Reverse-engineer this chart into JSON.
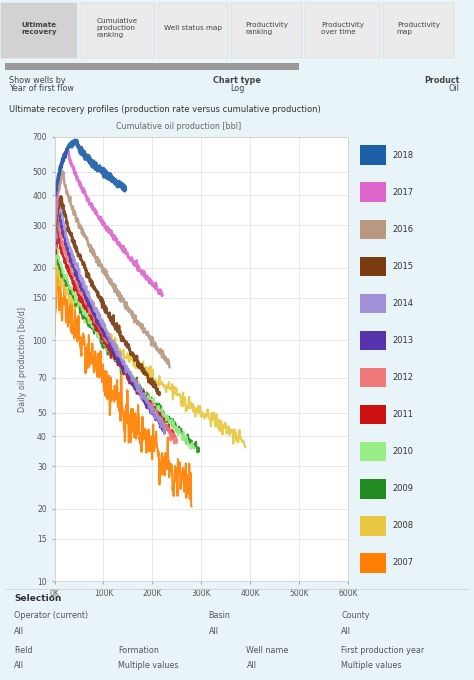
{
  "title_main": "Ultimate recovery profiles (production rate versus cumulative production)",
  "xlabel": "Cumulative oil production [bbl]",
  "ylabel": "Daily oil production [bo/d]",
  "background_color": "#e8f4f8",
  "plot_bg_color": "#ffffff",
  "tab_labels": [
    "Ultimate\nrecovery",
    "Cumulative\nproduction\nranking",
    "Well status map",
    "Productivity\nranking",
    "Productivity\nover time",
    "Productivity\nmap"
  ],
  "show_wells_by": "Year of first flow",
  "chart_type": "Log",
  "product": "Oil",
  "years": [
    "2018",
    "2017",
    "2016",
    "2015",
    "2014",
    "2013",
    "2012",
    "2011",
    "2010",
    "2009",
    "2008",
    "2007"
  ],
  "colors": {
    "2018": "#1a5fa8",
    "2017": "#dd66cc",
    "2016": "#b89880",
    "2015": "#7a3b10",
    "2014": "#a090d8",
    "2013": "#5533aa",
    "2012": "#f07878",
    "2011": "#cc1111",
    "2010": "#99ee88",
    "2009": "#228B22",
    "2008": "#e8c840",
    "2007": "#ff8000"
  },
  "xlim": [
    0,
    600000
  ],
  "ylim_log_min": 10,
  "ylim_log_max": 700,
  "yticks": [
    10,
    15,
    20,
    30,
    40,
    50,
    70,
    100,
    150,
    200,
    300,
    400,
    500,
    700
  ],
  "xticks": [
    0,
    100000,
    200000,
    300000,
    400000,
    500000,
    600000
  ],
  "xtick_labels": [
    "0K",
    "100K",
    "200K",
    "300K",
    "400K",
    "500K",
    "600K"
  ],
  "profiles": {
    "2018": {
      "start_x": 1000,
      "start_y": 400,
      "peak_x": 45000,
      "peak_y": 670,
      "end_x": 145000,
      "end_y": 425,
      "noise": 0.015,
      "lw": 2.5
    },
    "2017": {
      "start_x": 1000,
      "start_y": 330,
      "peak_x": 28000,
      "peak_y": 610,
      "end_x": 220000,
      "end_y": 155,
      "noise": 0.015,
      "lw": 2.0
    },
    "2016": {
      "start_x": 1000,
      "start_y": 280,
      "peak_x": 18000,
      "peak_y": 490,
      "end_x": 235000,
      "end_y": 80,
      "noise": 0.02,
      "lw": 1.8
    },
    "2015": {
      "start_x": 1000,
      "start_y": 280,
      "peak_x": 15000,
      "peak_y": 390,
      "end_x": 215000,
      "end_y": 60,
      "noise": 0.02,
      "lw": 1.8
    },
    "2014": {
      "start_x": 1000,
      "start_y": 260,
      "peak_x": 13000,
      "peak_y": 355,
      "end_x": 225000,
      "end_y": 43,
      "noise": 0.02,
      "lw": 1.8
    },
    "2013": {
      "start_x": 1000,
      "start_y": 250,
      "peak_x": 11000,
      "peak_y": 330,
      "end_x": 225000,
      "end_y": 42,
      "noise": 0.02,
      "lw": 1.8
    },
    "2012": {
      "start_x": 1000,
      "start_y": 240,
      "peak_x": 9000,
      "peak_y": 305,
      "end_x": 250000,
      "end_y": 38,
      "noise": 0.02,
      "lw": 1.8
    },
    "2011": {
      "start_x": 1000,
      "start_y": 230,
      "peak_x": 7000,
      "peak_y": 280,
      "end_x": 245000,
      "end_y": 40,
      "noise": 0.025,
      "lw": 1.8
    },
    "2010": {
      "start_x": 1000,
      "start_y": 220,
      "peak_x": 5500,
      "peak_y": 240,
      "end_x": 285000,
      "end_y": 36,
      "noise": 0.025,
      "lw": 1.5
    },
    "2009": {
      "start_x": 1000,
      "start_y": 215,
      "peak_x": 4500,
      "peak_y": 230,
      "end_x": 295000,
      "end_y": 35,
      "noise": 0.025,
      "lw": 1.5
    },
    "2008": {
      "start_x": 1000,
      "start_y": 155,
      "peak_x": 3500,
      "peak_y": 200,
      "end_x": 390000,
      "end_y": 38,
      "noise": 0.04,
      "lw": 1.5
    },
    "2007": {
      "start_x": 500,
      "start_y": 120,
      "peak_x": 2500,
      "peak_y": 185,
      "end_x": 280000,
      "end_y": 24,
      "noise": 0.1,
      "lw": 1.5
    }
  }
}
